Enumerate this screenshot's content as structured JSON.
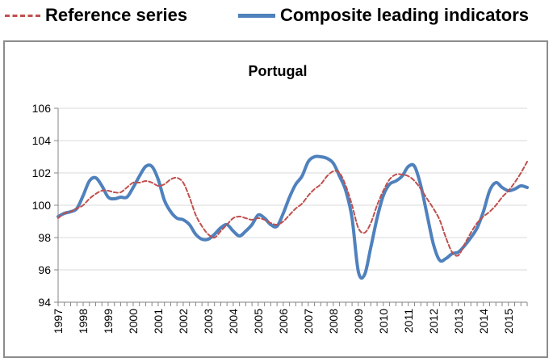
{
  "legend": {
    "reference_label": "Reference series",
    "cli_label": "Composite leading indicators"
  },
  "colors": {
    "reference": "#c0504d",
    "cli": "#4f81bd",
    "grid": "#d9d9d9",
    "axis": "#868686"
  },
  "chart_data": {
    "type": "line",
    "title": "Portugal",
    "xlabel": "",
    "ylabel": "",
    "ylim": [
      94,
      106
    ],
    "yticks": [
      94,
      96,
      98,
      100,
      102,
      104,
      106
    ],
    "xlim": [
      1997,
      2015.75
    ],
    "xticks": [
      "1997",
      "1998",
      "1999",
      "2000",
      "2001",
      "2002",
      "2003",
      "2004",
      "2005",
      "2006",
      "2007",
      "2008",
      "2009",
      "2010",
      "2011",
      "2012",
      "2013",
      "2014",
      "2015"
    ],
    "grid": "horizontal",
    "legend_position": "top",
    "series": [
      {
        "name": "Reference series",
        "style": "dashed",
        "x": [
          1997.0,
          1997.25,
          1997.5,
          1997.75,
          1998.0,
          1998.25,
          1998.5,
          1998.75,
          1999.0,
          1999.25,
          1999.5,
          1999.75,
          2000.0,
          2000.25,
          2000.5,
          2000.75,
          2001.0,
          2001.25,
          2001.5,
          2001.75,
          2002.0,
          2002.25,
          2002.5,
          2002.75,
          2003.0,
          2003.25,
          2003.5,
          2003.75,
          2004.0,
          2004.25,
          2004.5,
          2004.75,
          2005.0,
          2005.25,
          2005.5,
          2005.75,
          2006.0,
          2006.25,
          2006.5,
          2006.75,
          2007.0,
          2007.25,
          2007.5,
          2007.75,
          2008.0,
          2008.25,
          2008.5,
          2008.75,
          2009.0,
          2009.25,
          2009.5,
          2009.75,
          2010.0,
          2010.25,
          2010.5,
          2010.75,
          2011.0,
          2011.25,
          2011.5,
          2011.75,
          2012.0,
          2012.25,
          2012.5,
          2012.75,
          2013.0,
          2013.25,
          2013.5,
          2013.75,
          2014.0,
          2014.25,
          2014.5,
          2014.75,
          2015.0,
          2015.25,
          2015.5,
          2015.75
        ],
        "values": [
          99.2,
          99.5,
          99.6,
          99.8,
          100.0,
          100.4,
          100.7,
          100.9,
          100.9,
          100.8,
          100.8,
          101.1,
          101.4,
          101.4,
          101.5,
          101.4,
          101.2,
          101.3,
          101.6,
          101.7,
          101.4,
          100.5,
          99.4,
          98.7,
          98.2,
          98.0,
          98.4,
          98.8,
          99.2,
          99.3,
          99.2,
          99.1,
          99.2,
          99.1,
          98.9,
          98.8,
          99.0,
          99.4,
          99.8,
          100.1,
          100.6,
          101.0,
          101.3,
          101.8,
          102.1,
          102.0,
          101.2,
          100.0,
          98.6,
          98.3,
          98.9,
          100.0,
          100.9,
          101.6,
          101.9,
          101.9,
          101.8,
          101.5,
          101.0,
          100.4,
          99.8,
          99.1,
          98.0,
          97.1,
          96.9,
          97.6,
          98.3,
          98.9,
          99.3,
          99.6,
          100.0,
          100.5,
          100.9,
          101.4,
          102.0,
          102.7
        ]
      },
      {
        "name": "Composite leading indicators",
        "style": "solid",
        "x": [
          1997.0,
          1997.25,
          1997.5,
          1997.75,
          1998.0,
          1998.25,
          1998.5,
          1998.75,
          1999.0,
          1999.25,
          1999.5,
          1999.75,
          2000.0,
          2000.25,
          2000.5,
          2000.75,
          2001.0,
          2001.25,
          2001.5,
          2001.75,
          2002.0,
          2002.25,
          2002.5,
          2002.75,
          2003.0,
          2003.25,
          2003.5,
          2003.75,
          2004.0,
          2004.25,
          2004.5,
          2004.75,
          2005.0,
          2005.25,
          2005.5,
          2005.75,
          2006.0,
          2006.25,
          2006.5,
          2006.75,
          2007.0,
          2007.25,
          2007.5,
          2007.75,
          2008.0,
          2008.25,
          2008.5,
          2008.75,
          2009.0,
          2009.25,
          2009.5,
          2009.75,
          2010.0,
          2010.25,
          2010.5,
          2010.75,
          2011.0,
          2011.25,
          2011.5,
          2011.75,
          2012.0,
          2012.25,
          2012.5,
          2012.75,
          2013.0,
          2013.25,
          2013.5,
          2013.75,
          2014.0,
          2014.25,
          2014.5,
          2014.75,
          2015.0,
          2015.25,
          2015.5,
          2015.75
        ],
        "values": [
          99.3,
          99.5,
          99.6,
          99.8,
          100.6,
          101.5,
          101.7,
          101.2,
          100.5,
          100.4,
          100.5,
          100.5,
          101.1,
          101.8,
          102.4,
          102.4,
          101.6,
          100.3,
          99.6,
          99.2,
          99.1,
          98.8,
          98.2,
          97.9,
          97.9,
          98.2,
          98.6,
          98.8,
          98.4,
          98.1,
          98.4,
          98.8,
          99.4,
          99.2,
          98.8,
          98.7,
          99.5,
          100.5,
          101.3,
          101.8,
          102.7,
          103.0,
          103.0,
          102.9,
          102.6,
          101.8,
          100.9,
          99.2,
          95.9,
          95.7,
          97.4,
          99.2,
          100.6,
          101.3,
          101.5,
          101.8,
          102.4,
          102.4,
          101.2,
          99.4,
          97.6,
          96.6,
          96.7,
          97.0,
          97.1,
          97.5,
          98.0,
          98.6,
          99.6,
          100.9,
          101.4,
          101.1,
          100.9,
          101.0,
          101.2,
          101.1
        ]
      }
    ]
  }
}
